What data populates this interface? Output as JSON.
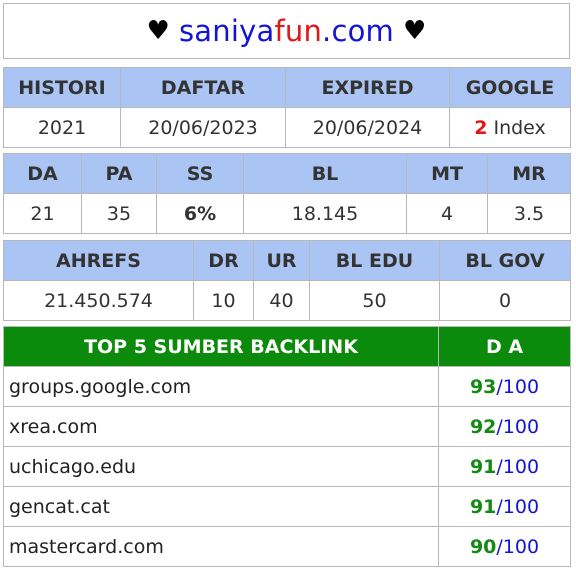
{
  "banner": {
    "heart_left": "♥",
    "part1": "saniya",
    "part2": "fun",
    "part3": ".com",
    "heart_right": "♥"
  },
  "table1": {
    "headers": [
      "HISTORI",
      "DAFTAR",
      "EXPIRED",
      "GOOGLE"
    ],
    "values": {
      "histori": "2021",
      "daftar": "20/06/2023",
      "expired": "20/06/2024",
      "google_count": "2",
      "google_label": " Index"
    }
  },
  "table2": {
    "headers": [
      "DA",
      "PA",
      "SS",
      "BL",
      "MT",
      "MR"
    ],
    "values": [
      "21",
      "35",
      "6%",
      "18.145",
      "4",
      "3.5"
    ]
  },
  "table3": {
    "headers": [
      "AHREFS",
      "DR",
      "UR",
      "BL EDU",
      "BL GOV"
    ],
    "values": [
      "21.450.574",
      "10",
      "40",
      "50",
      "0"
    ]
  },
  "backlinks": {
    "header_site": "TOP 5 SUMBER BACKLINK",
    "header_da": "D A",
    "rows": [
      {
        "site": "groups.google.com",
        "da": "93",
        "max": "/100"
      },
      {
        "site": "xrea.com",
        "da": "92",
        "max": "/100"
      },
      {
        "site": "uchicago.edu",
        "da": "91",
        "max": "/100"
      },
      {
        "site": "gencat.cat",
        "da": "91",
        "max": "/100"
      },
      {
        "site": "mastercard.com",
        "da": "90",
        "max": "/100"
      }
    ]
  },
  "colors": {
    "header_blue": "#aac4f4",
    "header_green": "#0b8a0b",
    "accent_red": "#e01818",
    "accent_green": "#148a14",
    "accent_blue": "#1414d4"
  }
}
